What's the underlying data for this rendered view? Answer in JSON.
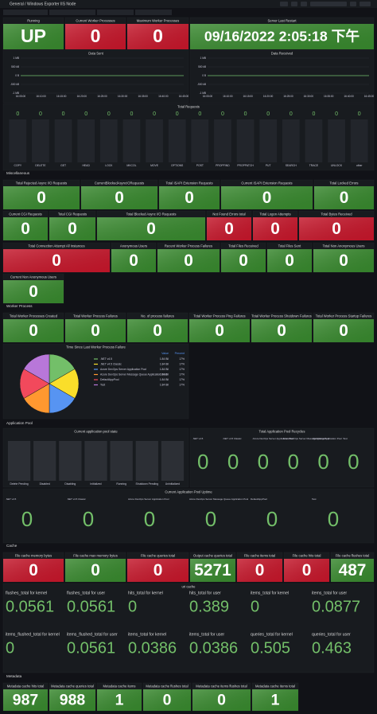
{
  "header": {
    "breadcrumb": "General / Windows Exporter IIS Node"
  },
  "sections": [
    "Miscellaneous",
    "Worker Process",
    "Application Pool",
    "Cache",
    "Metadata"
  ],
  "stats": [
    {
      "title": "Running",
      "value": "UP",
      "color": "#37872d"
    },
    {
      "title": "Current Worker Processes",
      "value": 0,
      "color": "#c4162a"
    },
    {
      "title": "Maximum Worker Processes",
      "value": 0,
      "color": "#c4162a"
    },
    {
      "title": "Server Last Restart",
      "value": "09/16/2022 2:05:18 下午",
      "color": "#37872d"
    },
    {
      "title": "Total Rejected Async I/O Requests",
      "value": 0,
      "color": "#37872d"
    },
    {
      "title": "CurrentBlockedAsyncIORequests",
      "value": 0,
      "color": "#37872d"
    },
    {
      "title": "Total ISAPI Extension Requests",
      "value": 0,
      "color": "#37872d"
    },
    {
      "title": "Current ISAPI Extension Requests",
      "value": 0,
      "color": "#37872d"
    },
    {
      "title": "Total Locked Errors",
      "value": 0,
      "color": "#37872d"
    },
    {
      "title": "Current CGI Requests",
      "value": 0,
      "color": "#37872d"
    },
    {
      "title": "Total CGI Requests",
      "value": 0,
      "color": "#37872d"
    },
    {
      "title": "Total Blocked Async I/O Requests",
      "value": 0,
      "color": "#37872d"
    },
    {
      "title": "Not Found Errors total",
      "value": 0,
      "color": "#c4162a"
    },
    {
      "title": "Total Logon Attempts",
      "value": 0,
      "color": "#c4162a"
    },
    {
      "title": "Total Bytes Received",
      "value": 0,
      "color": "#c4162a"
    },
    {
      "title": "Total Connection Attempt All Instances",
      "value": 0,
      "color": "#c4162a"
    },
    {
      "title": "Anonymous Users",
      "value": 0,
      "color": "#37872d"
    },
    {
      "title": "Recent Worker Process Failures",
      "value": 0,
      "color": "#37872d"
    },
    {
      "title": "Total Files Received",
      "value": 0,
      "color": "#37872d"
    },
    {
      "title": "Total Files Sent",
      "value": 0,
      "color": "#37872d"
    },
    {
      "title": "Total Non Anonymous Users",
      "value": 0,
      "color": "#37872d"
    },
    {
      "title": "Current Non Anonymous Users",
      "value": 0,
      "color": "#37872d"
    },
    {
      "title": "Total Worker Processes Created",
      "value": 0,
      "color": "#37872d"
    },
    {
      "title": "Total Worker Process Failures",
      "value": 0,
      "color": "#37872d"
    },
    {
      "title": "No. of process failures",
      "value": 0,
      "color": "#37872d"
    },
    {
      "title": "Total Worker Process Ping Failures",
      "value": 0,
      "color": "#37872d"
    },
    {
      "title": "Total Worker Process Shutdown Failures",
      "value": 0,
      "color": "#37872d"
    },
    {
      "title": "Total Worker Process Startup Failures",
      "value": 0,
      "color": "#37872d"
    },
    {
      "title": "File cache memory bytes",
      "value": 0,
      "color": "#c4162a"
    },
    {
      "title": "File cache max memory bytes",
      "value": 0,
      "color": "#37872d"
    },
    {
      "title": "File cache queries total",
      "value": 0,
      "color": "#c4162a"
    },
    {
      "title": "Output cache queries total",
      "value": 5271,
      "color": "#37872d"
    },
    {
      "title": "File cache items total",
      "value": 0,
      "color": "#c4162a"
    },
    {
      "title": "File cache hits total",
      "value": 0,
      "color": "#c4162a"
    },
    {
      "title": "File cache flushes total",
      "value": 487,
      "color": "#37872d"
    },
    {
      "title": "Metadata cache hits total",
      "value": 987,
      "color": "#37872d"
    },
    {
      "title": "Metadata cache queries total",
      "value": 988,
      "color": "#37872d"
    },
    {
      "title": "Metadata cache items",
      "value": 1,
      "color": "#37872d"
    },
    {
      "title": "Metadata cache flushes total",
      "value": 0,
      "color": "#37872d"
    },
    {
      "title": "Metadata cache items flushes total",
      "value": 0,
      "color": "#37872d"
    },
    {
      "title": "Metadata cache items total",
      "value": 1,
      "color": "#37872d"
    }
  ],
  "graphs": [
    {
      "title": "Data Sent",
      "x": [
        "16:05:00",
        "16:10:00",
        "16:15:00",
        "16:20:00",
        "16:25:00",
        "16:30:00",
        "16:35:00",
        "16:40:00",
        "16:45:00"
      ],
      "values": [
        0,
        0,
        0,
        0,
        0,
        0,
        0,
        0,
        0
      ],
      "color": "#73bf69",
      "ylim": [
        -1000000,
        1000000
      ],
      "yticks": [
        {
          "value": 1000000,
          "label": "1 MB"
        },
        {
          "value": 500000,
          "label": "500 kB"
        },
        {
          "value": 0,
          "label": "0 B"
        },
        {
          "value": -500000,
          "label": "-500 kB"
        },
        {
          "value": -1000000,
          "label": "-1 MB"
        }
      ]
    },
    {
      "title": "Data Received",
      "x": [
        "16:05:00",
        "16:10:00",
        "16:15:00",
        "16:20:00",
        "16:25:00",
        "16:30:00",
        "16:35:00",
        "16:40:00",
        "16:45:00"
      ],
      "values": [
        0,
        0,
        0,
        0,
        0,
        0,
        0,
        0,
        0
      ],
      "color": "#73bf69",
      "ylim": [
        -1000000,
        1000000
      ],
      "yticks": [
        {
          "value": 1000000,
          "label": "1 MB"
        },
        {
          "value": 500000,
          "label": "500 kB"
        },
        {
          "value": 0,
          "label": "0 B"
        },
        {
          "value": -500000,
          "label": "-500 kB"
        },
        {
          "value": -1000000,
          "label": "-1 MB"
        }
      ]
    }
  ],
  "total_requests": {
    "title": "Total Requests",
    "categories": [
      "COPY",
      "DELETE",
      "GET",
      "HEAD",
      "LOCK",
      "MKCOL",
      "MOVE",
      "OPTIONS",
      "POST",
      "PROPFIND",
      "PROPPATCH",
      "PUT",
      "SEARCH",
      "TRACE",
      "UNLOCK",
      "other"
    ],
    "values": [
      0,
      0,
      0,
      0,
      0,
      0,
      0,
      0,
      0,
      0,
      0,
      0,
      0,
      0,
      0,
      0
    ]
  },
  "pie": {
    "title": "Time Since Last Worker Process Failure",
    "columns": [
      "Value",
      "Percent"
    ],
    "series": [
      {
        "name": ".NET v4.5",
        "color": "#73bf69",
        "value": 1840000000,
        "value_label": "1.84 Bil",
        "percent": 17,
        "percent_label": "17%"
      },
      {
        "name": ".NET v4.5 Classic",
        "color": "#fade2a",
        "value": 1840000000,
        "value_label": "1.84 Bil",
        "percent": 17,
        "percent_label": "17%"
      },
      {
        "name": "Azure DevOps Server Application Pool",
        "color": "#5794f2",
        "value": 1840000000,
        "value_label": "1.84 Bil",
        "percent": 17,
        "percent_label": "17%"
      },
      {
        "name": "Azure DevOps Server Message Queue Application Pool",
        "color": "#ff9830",
        "value": 1840000000,
        "value_label": "1.84 Bil",
        "percent": 17,
        "percent_label": "17%"
      },
      {
        "name": "DefaultAppPool",
        "color": "#f2495c",
        "value": 1840000000,
        "value_label": "1.84 Bil",
        "percent": 17,
        "percent_label": "17%"
      },
      {
        "name": "Test",
        "color": "#b877d9",
        "value": 1840000000,
        "value_label": "1.84 Bil",
        "percent": 17,
        "percent_label": "17%"
      }
    ]
  },
  "pool_state": {
    "title": "Current application pool state",
    "categories": [
      "Delete Pending",
      "Disabled",
      "Disabling",
      "Initialized",
      "Running",
      "Shutdown Pending",
      "Uninitialized"
    ],
    "values": [
      0,
      0,
      0,
      0,
      0,
      0,
      0
    ]
  },
  "pool_recycles": {
    "title": "Total Application Pool Recycles",
    "names": [
      ".NET v4.5",
      ".NET v4.5 Classic",
      "Azure DevOps Server Application Pool",
      "Azure DevOps Server Message Queue Application Pool",
      "DefaultAppPool",
      "Test"
    ],
    "values": [
      0,
      0,
      0,
      0,
      0,
      0
    ]
  },
  "pool_uptime": {
    "title": "Current Application Pool Uptime",
    "names": [
      ".NET v4.5",
      ".NET v4.5 Classic",
      "Azure DevOps Server Application Pool",
      "Azure DevOps Server Message Queue Application Pool",
      "DefaultAppPool",
      "Test"
    ],
    "values": [
      0,
      0,
      0,
      0,
      0,
      0
    ]
  },
  "uri_cache": {
    "title": "uri cache",
    "items": [
      {
        "name": "flushes_total for kernel",
        "value": 0.0561
      },
      {
        "name": "flushes_total for user",
        "value": 0.0561
      },
      {
        "name": "hits_total for kernel",
        "value": 0
      },
      {
        "name": "hits_total for user",
        "value": 0.389
      },
      {
        "name": "items_total for kernel",
        "value": 0
      },
      {
        "name": "items_total for user",
        "value": 0.0877
      },
      {
        "name": "items_flushed_total for kernel",
        "value": 0
      },
      {
        "name": "items_flushed_total for user",
        "value": 0.0561
      },
      {
        "name": "items_total for kernel",
        "value": 0.0386
      },
      {
        "name": "items_total for user",
        "value": 0.0386
      },
      {
        "name": "queries_total for kernel",
        "value": 0.505
      },
      {
        "name": "queries_total for user",
        "value": 0.463
      }
    ]
  }
}
